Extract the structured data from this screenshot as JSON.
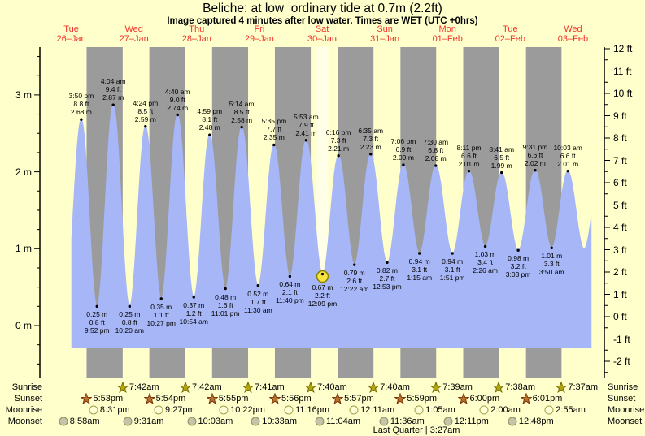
{
  "title": "Beliche: at low  ordinary tide at 0.7m (2.2ft)",
  "subtitle": "Image captured 4 minutes after low water. Times are WET (UTC +0hrs)",
  "colors": {
    "background": "#ffffcc",
    "night_band": "#9b9b9b",
    "tide_fill": "#a6b6f6",
    "tide_dot": "#000000",
    "day_label_red": "#f03428",
    "current_marker_fill": "#f8e440",
    "current_marker_stroke": "#8a8000",
    "current_highlight": "rgba(255,255,255,0.55)",
    "sunrise_star_fill": "#b3a512",
    "sunrise_star_stroke": "#6f6a00",
    "sunset_star_fill": "#b5762a",
    "sunset_star_stroke": "#7a3010",
    "moonrise_circle_fill": "#ffffd8",
    "moonrise_circle_stroke": "#a0a048",
    "moonset_circle_fill": "#c4c4aa",
    "moonset_circle_stroke": "#8f8f60"
  },
  "astro_labels": {
    "sunrise": "Sunrise",
    "sunset": "Sunset",
    "moonrise": "Moonrise",
    "moonset": "Moonset"
  },
  "chart_data": {
    "type": "area",
    "title": "Beliche tide curve 26-Jan to 03-Feb",
    "ylabel_left_unit": "m",
    "ylabel_right_unit": "ft",
    "y_axis_left": {
      "labels": [
        "3 m",
        "2 m",
        "1 m",
        "0 m"
      ],
      "values": [
        3,
        2,
        1,
        0
      ],
      "minor_step_m": 0.25
    },
    "y_axis_right": {
      "labels": [
        "12 ft",
        "11 ft",
        "10 ft",
        "9 ft",
        "8 ft",
        "7 ft",
        "6 ft",
        "5 ft",
        "4 ft",
        "3 ft",
        "2 ft",
        "1 ft",
        "0 ft",
        "-1 ft",
        "-2 ft"
      ],
      "values": [
        12,
        11,
        10,
        9,
        8,
        7,
        6,
        5,
        4,
        3,
        2,
        1,
        0,
        -1,
        -2
      ],
      "minor_step_ft": 0.5
    },
    "days": [
      {
        "label": "Tue",
        "date": "26–Jan"
      },
      {
        "label": "Wed",
        "date": "27–Jan"
      },
      {
        "label": "Thu",
        "date": "28–Jan"
      },
      {
        "label": "Fri",
        "date": "29–Jan"
      },
      {
        "label": "Sat",
        "date": "30–Jan"
      },
      {
        "label": "Sun",
        "date": "31–Jan"
      },
      {
        "label": "Mon",
        "date": "01–Feb"
      },
      {
        "label": "Tue",
        "date": "02–Feb"
      },
      {
        "label": "Wed",
        "date": "03–Feb"
      }
    ],
    "tides": [
      {
        "day": 0,
        "time": "3:50 pm",
        "height_ft": 8.8,
        "height_m": 2.68,
        "type": "high"
      },
      {
        "day": 0,
        "time": "9:52 pm",
        "height_ft": 0.8,
        "height_m": 0.25,
        "type": "low"
      },
      {
        "day": 1,
        "time": "4:04 am",
        "height_ft": 9.4,
        "height_m": 2.87,
        "type": "high"
      },
      {
        "day": 1,
        "time": "10:20 am",
        "height_ft": 0.8,
        "height_m": 0.25,
        "type": "low"
      },
      {
        "day": 1,
        "time": "4:24 pm",
        "height_ft": 8.5,
        "height_m": 2.59,
        "type": "high"
      },
      {
        "day": 1,
        "time": "10:27 pm",
        "height_ft": 1.1,
        "height_m": 0.35,
        "type": "low"
      },
      {
        "day": 2,
        "time": "4:40 am",
        "height_ft": 9.0,
        "height_m": 2.74,
        "type": "high"
      },
      {
        "day": 2,
        "time": "10:54 am",
        "height_ft": 1.2,
        "height_m": 0.37,
        "type": "low"
      },
      {
        "day": 2,
        "time": "4:59 pm",
        "height_ft": 8.1,
        "height_m": 2.48,
        "type": "high"
      },
      {
        "day": 2,
        "time": "11:01 pm",
        "height_ft": 1.6,
        "height_m": 0.48,
        "type": "low"
      },
      {
        "day": 3,
        "time": "5:14 am",
        "height_ft": 8.5,
        "height_m": 2.58,
        "type": "high"
      },
      {
        "day": 3,
        "time": "11:30 am",
        "height_ft": 1.7,
        "height_m": 0.52,
        "type": "low"
      },
      {
        "day": 3,
        "time": "5:35 pm",
        "height_ft": 7.7,
        "height_m": 2.35,
        "type": "high"
      },
      {
        "day": 3,
        "time": "11:40 pm",
        "height_ft": 2.1,
        "height_m": 0.64,
        "type": "low"
      },
      {
        "day": 4,
        "time": "5:53 am",
        "height_ft": 7.9,
        "height_m": 2.41,
        "type": "high"
      },
      {
        "day": 4,
        "time": "12:09 pm",
        "height_ft": 2.2,
        "height_m": 0.67,
        "type": "low",
        "current": true
      },
      {
        "day": 4,
        "time": "6:16 pm",
        "height_ft": 7.3,
        "height_m": 2.21,
        "type": "high"
      },
      {
        "day": 5,
        "time": "12:22 am",
        "height_ft": 2.6,
        "height_m": 0.79,
        "type": "low"
      },
      {
        "day": 5,
        "time": "6:35 am",
        "height_ft": 7.3,
        "height_m": 2.23,
        "type": "high"
      },
      {
        "day": 5,
        "time": "12:53 pm",
        "height_ft": 2.7,
        "height_m": 0.82,
        "type": "low"
      },
      {
        "day": 5,
        "time": "7:06 pm",
        "height_ft": 6.9,
        "height_m": 2.09,
        "type": "high"
      },
      {
        "day": 6,
        "time": "1:15 am",
        "height_ft": 3.1,
        "height_m": 0.94,
        "type": "low"
      },
      {
        "day": 6,
        "time": "7:30 am",
        "height_ft": 6.8,
        "height_m": 2.08,
        "type": "high"
      },
      {
        "day": 6,
        "time": "1:51 pm",
        "height_ft": 3.1,
        "height_m": 0.94,
        "type": "low"
      },
      {
        "day": 6,
        "time": "8:11 pm",
        "height_ft": 6.6,
        "height_m": 2.01,
        "type": "high"
      },
      {
        "day": 7,
        "time": "2:26 am",
        "height_ft": 3.4,
        "height_m": 1.03,
        "type": "low"
      },
      {
        "day": 7,
        "time": "8:41 am",
        "height_ft": 6.5,
        "height_m": 1.99,
        "type": "high"
      },
      {
        "day": 7,
        "time": "3:03 pm",
        "height_ft": 3.2,
        "height_m": 0.98,
        "type": "low"
      },
      {
        "day": 7,
        "time": "9:31 pm",
        "height_ft": 6.6,
        "height_m": 2.02,
        "type": "high"
      },
      {
        "day": 8,
        "time": "3:50 am",
        "height_ft": 3.3,
        "height_m": 1.01,
        "type": "low"
      },
      {
        "day": 8,
        "time": "10:03 am",
        "height_ft": 6.6,
        "height_m": 2.01,
        "type": "high"
      }
    ],
    "sun_moon": {
      "sunrise": [
        {
          "day": 1,
          "time": "7:42am"
        },
        {
          "day": 2,
          "time": "7:42am"
        },
        {
          "day": 3,
          "time": "7:41am"
        },
        {
          "day": 4,
          "time": "7:40am"
        },
        {
          "day": 5,
          "time": "7:40am"
        },
        {
          "day": 6,
          "time": "7:39am"
        },
        {
          "day": 7,
          "time": "7:38am"
        },
        {
          "day": 8,
          "time": "7:37am"
        }
      ],
      "sunset": [
        {
          "day": 0,
          "time": "5:53pm"
        },
        {
          "day": 1,
          "time": "5:54pm"
        },
        {
          "day": 2,
          "time": "5:55pm"
        },
        {
          "day": 3,
          "time": "5:56pm"
        },
        {
          "day": 4,
          "time": "5:57pm"
        },
        {
          "day": 5,
          "time": "5:59pm"
        },
        {
          "day": 6,
          "time": "6:00pm"
        },
        {
          "day": 7,
          "time": "6:01pm"
        }
      ],
      "moonrise": [
        {
          "day": 0,
          "time": "8:31pm"
        },
        {
          "day": 1,
          "time": "9:27pm"
        },
        {
          "day": 2,
          "time": "10:22pm"
        },
        {
          "day": 3,
          "time": "11:16pm"
        },
        {
          "day": 5,
          "time": "12:11am"
        },
        {
          "day": 6,
          "time": "1:05am"
        },
        {
          "day": 7,
          "time": "2:00am"
        },
        {
          "day": 8,
          "time": "2:55am"
        }
      ],
      "moonset": [
        {
          "day": 0,
          "time": "8:58am"
        },
        {
          "day": 1,
          "time": "9:31am"
        },
        {
          "day": 2,
          "time": "10:03am"
        },
        {
          "day": 3,
          "time": "10:33am"
        },
        {
          "day": 4,
          "time": "11:04am"
        },
        {
          "day": 5,
          "time": "11:36am"
        },
        {
          "day": 6,
          "time": "12:11pm"
        },
        {
          "day": 7,
          "time": "12:48pm"
        }
      ]
    },
    "moon_phase": "Last Quarter | 3:27am"
  }
}
